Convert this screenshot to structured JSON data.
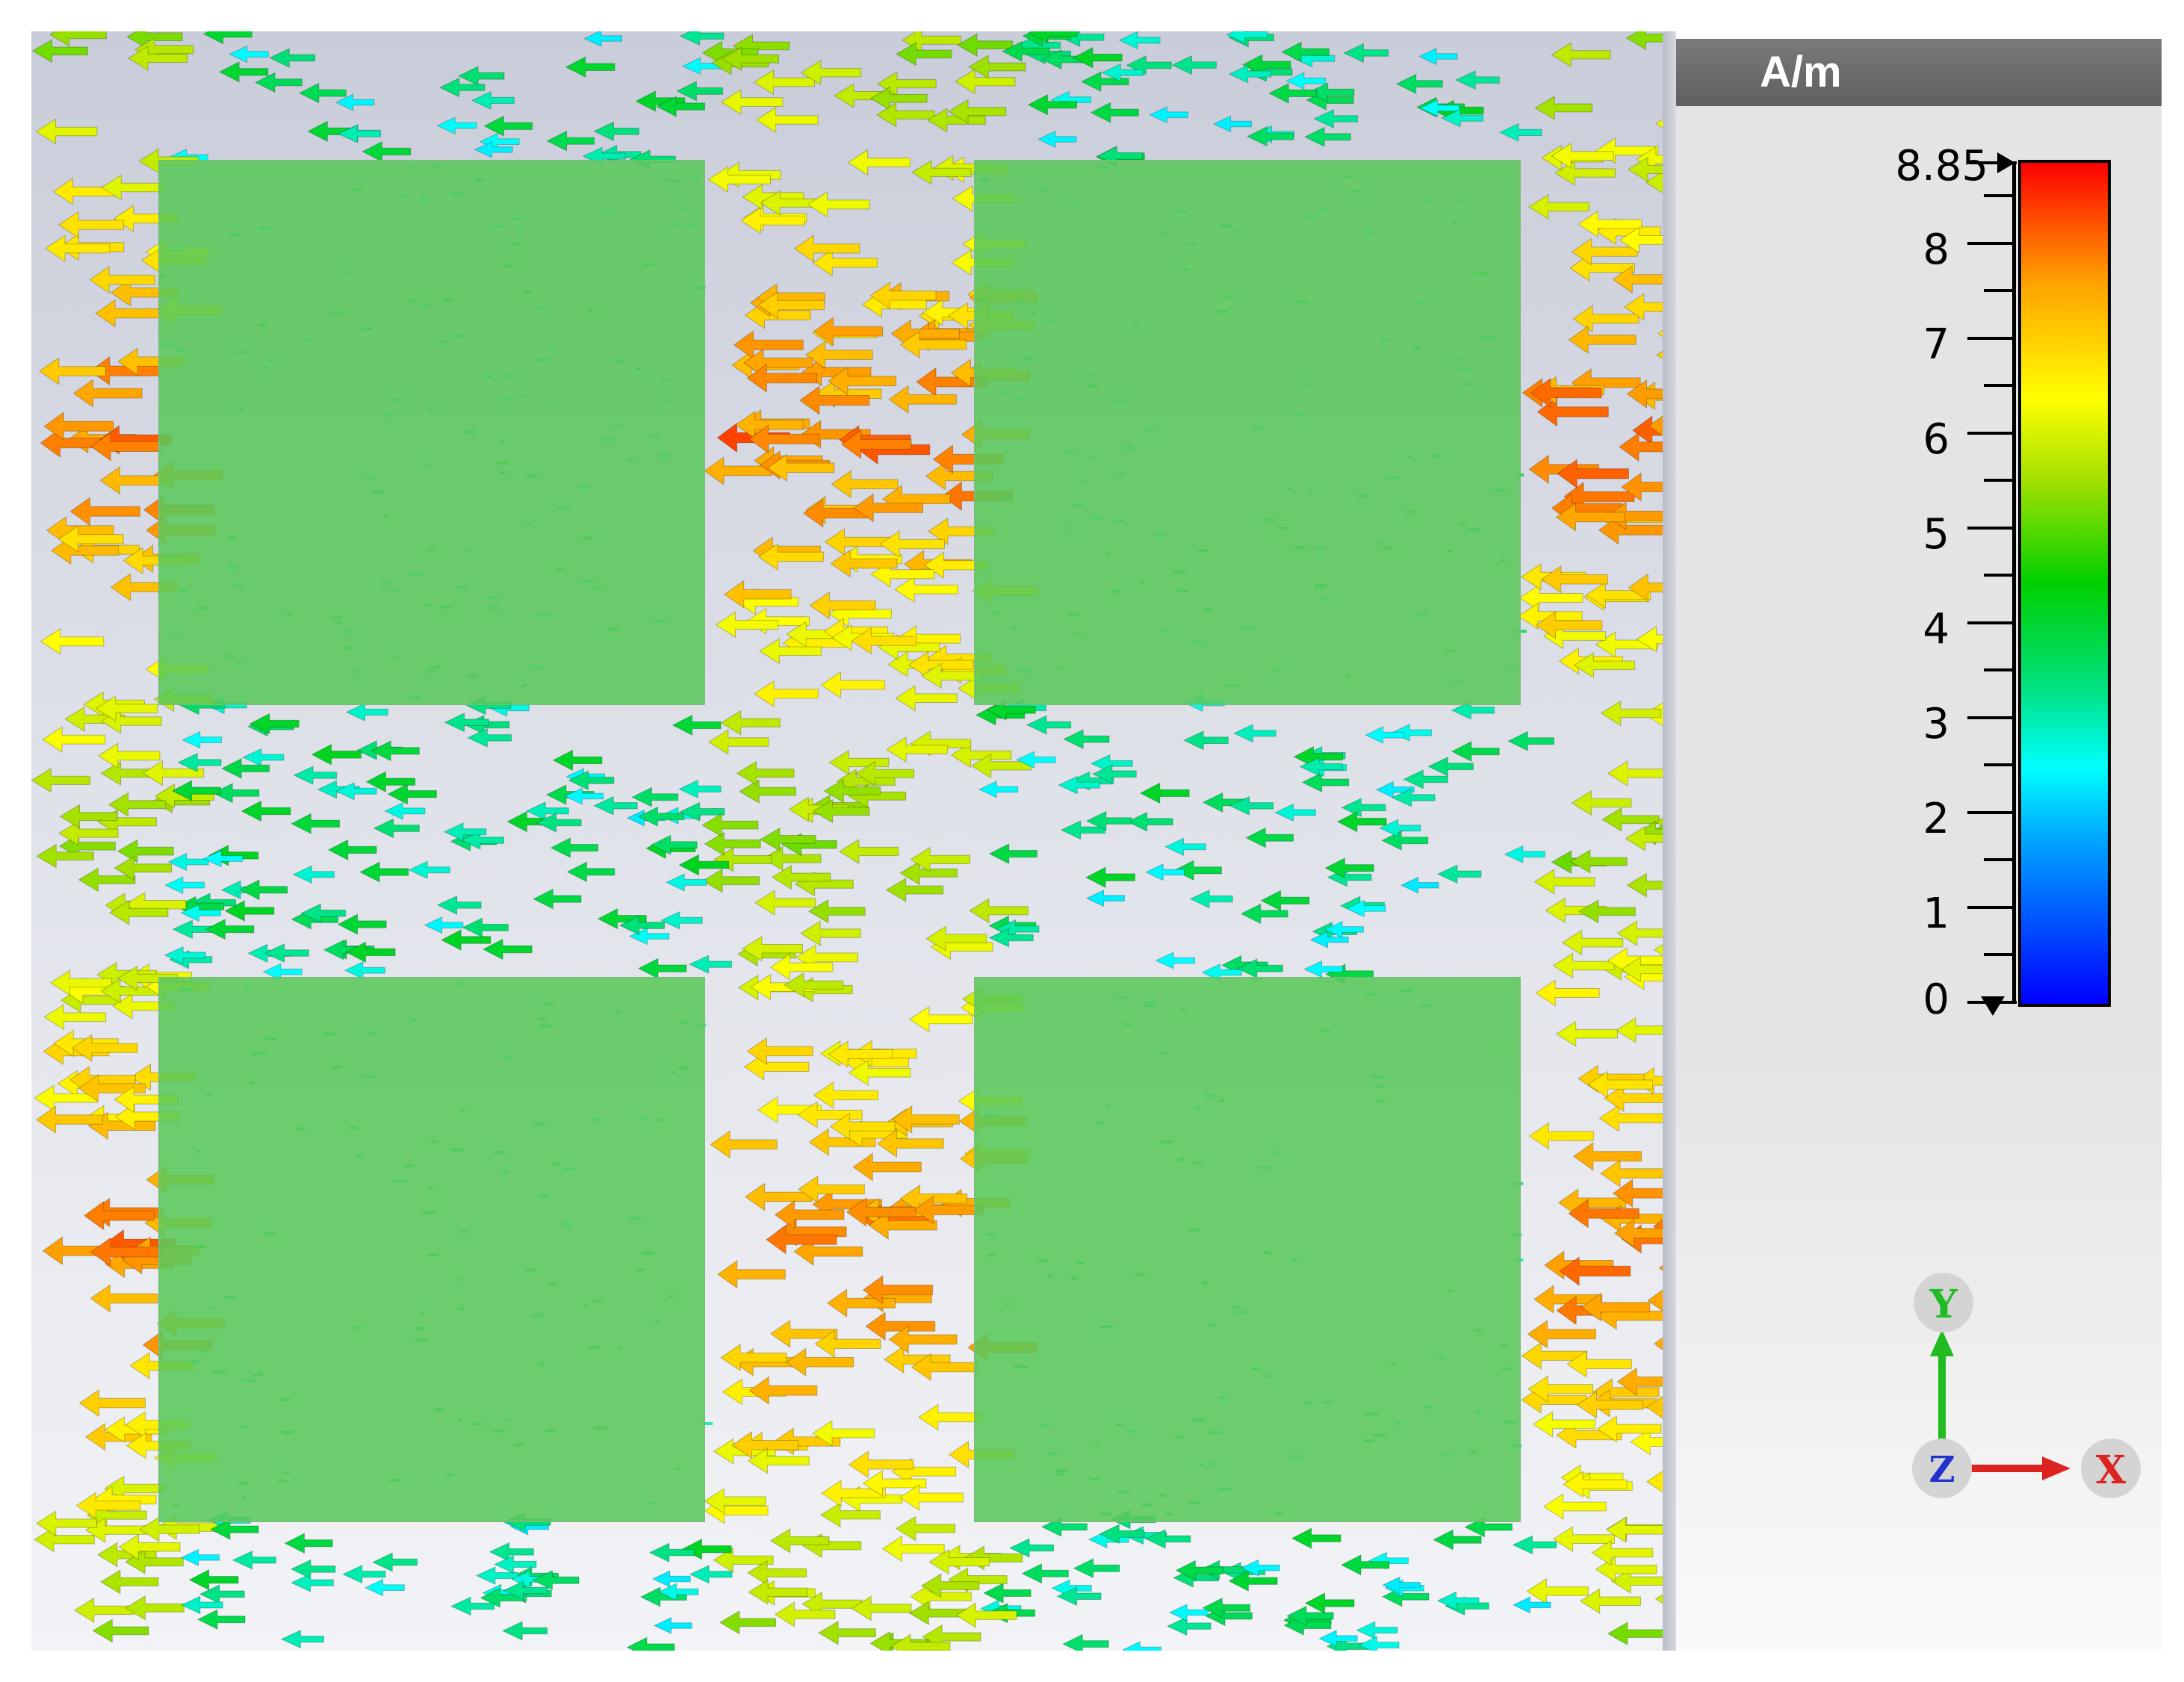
{
  "legend": {
    "unit": "A/m",
    "max_label": "8.85",
    "tick_labels": [
      "8",
      "7",
      "6",
      "5",
      "4",
      "3",
      "2",
      "1",
      "0"
    ],
    "range": [
      0,
      8.85
    ],
    "colors": [
      "#0000ff",
      "#00aaff",
      "#00ffff",
      "#00e07a",
      "#00d000",
      "#a0e000",
      "#ffff00",
      "#ffa000",
      "#ff0000"
    ]
  },
  "axes_triad": {
    "y_label": "Y",
    "z_label": "Z",
    "x_label": "X",
    "y_color": "#22bb22",
    "x_color": "#dd2222",
    "z_color": "#2233cc"
  },
  "view": {
    "patch_color": "#5ac85a",
    "background_color": "#dfe1e9",
    "arrow_direction": "left",
    "patch_grid": "2x2"
  }
}
